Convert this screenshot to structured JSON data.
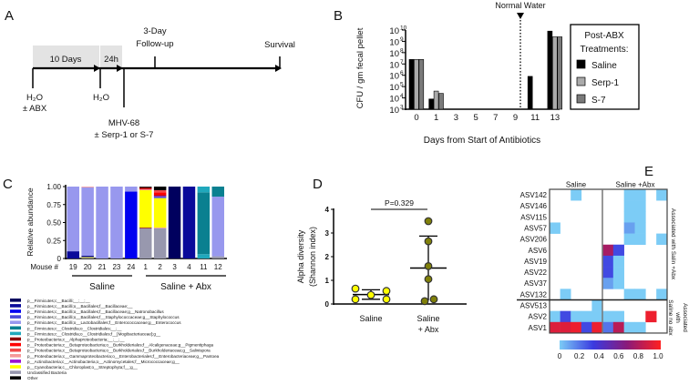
{
  "panels": {
    "a": "A",
    "b": "B",
    "c": "C",
    "d": "D",
    "e": "E"
  },
  "timeline": {
    "box1": "10 Days",
    "box2": "24h",
    "start_label1": "H₂O",
    "start_label2": "± ABX",
    "mid_label": "H₂O",
    "infect_label1": "MHV-68",
    "infect_label2": "± Serp-1 or S-7",
    "followup1": "3-Day",
    "followup2": "Follow-up",
    "end_label": "Survival"
  },
  "chart_data": [
    {
      "id": "B",
      "type": "bar",
      "title": "",
      "xlabel": "Days from Start of Antibiotics",
      "ylabel": "CFU / gm fecal pellet",
      "yscale": "log",
      "ylim": [
        1000,
        10000000000
      ],
      "y_tick_base": "10",
      "y_tick_exponents": [
        "3",
        "4",
        "5",
        "6",
        "7",
        "8",
        "9",
        "10"
      ],
      "categories": [
        "0",
        "1",
        "3",
        "5",
        "7",
        "9",
        "11",
        "13"
      ],
      "annotation": "Normal Water",
      "annotation_between": [
        "9",
        "11"
      ],
      "legend_title": [
        "Post-ABX",
        "Treatments:"
      ],
      "legend_position": "right",
      "series": [
        {
          "name": "Saline",
          "color": "#000000",
          "values": [
            25000000,
            8000,
            null,
            null,
            null,
            null,
            800000,
            8000000000
          ]
        },
        {
          "name": "Serp-1",
          "color": "#aaaaaa",
          "values": [
            25000000,
            40000,
            null,
            null,
            null,
            null,
            null,
            2500000000
          ]
        },
        {
          "name": "S-7",
          "color": "#7a7a7a",
          "values": [
            25000000,
            25000,
            null,
            null,
            null,
            null,
            null,
            2500000000
          ]
        }
      ]
    },
    {
      "id": "C",
      "type": "bar",
      "stacked": true,
      "ylabel": "Relative abundance",
      "ylim": [
        0,
        1
      ],
      "y_ticks": [
        "0",
        "0.25",
        "0.50",
        "0.75",
        "1.00"
      ],
      "x_prefix": "Mouse #",
      "categories": [
        "19",
        "20",
        "21",
        "23",
        "24",
        "1",
        "2",
        "3",
        "4",
        "11",
        "12"
      ],
      "groups": [
        {
          "name": "Saline",
          "members": 5
        },
        {
          "name": "Saline + Abx",
          "members": 6
        }
      ],
      "taxa": [
        {
          "name": "p__Firmicutes;c__Bacilli;__;__;__",
          "color": "#00005e"
        },
        {
          "name": "p__Firmicutes;c__Bacilli;o__Bacillales;f__Bacillaceae;__",
          "color": "#0a0a9a"
        },
        {
          "name": "p__Firmicutes;c__Bacilli;o__Bacillales;f__Bacillaceae;g__Natronobacillus",
          "color": "#0000f0"
        },
        {
          "name": "p__Firmicutes;c__Bacilli;o__Bacillales;f__Staphylococcaceae;g__Staphylococcus",
          "color": "#4a4ad8"
        },
        {
          "name": "p__Firmicutes;c__Bacilli;o__Lactobacillales;f__Enterococcaceae;g__Enterococcus",
          "color": "#9898ee"
        },
        {
          "name": "p__Firmicutes;c__Clostridia;o__Clostridiales;__;__",
          "color": "#0a8090"
        },
        {
          "name": "p__Firmicutes;c__Clostridia;o__Clostridiales;f__[Mogibacteriaceae];g__",
          "color": "#20a8bc"
        },
        {
          "name": "p__Proteobacteria;c__Alphaproteobacteria;__;__;__",
          "color": "#8b0a0a"
        },
        {
          "name": "p__Proteobacteria;c__Betaproteobacteria;o__Burkholderiales;f__Alcaligenaceae;g__Pigmentiphaga",
          "color": "#ff0000"
        },
        {
          "name": "p__Proteobacteria;c__Betaproteobacteria;o__Burkholderiales;f__Burkholderiaceae;g__Salinispora",
          "color": "#f04848"
        },
        {
          "name": "p__Proteobacteria;c__Gammaproteobacteria;o__Enterobacteriales;f__Enterobacteriaceae;g__Pantoea",
          "color": "#f59898"
        },
        {
          "name": "p__Actinobacteria;c__Actinobacteria;o__Actinomycetales;f__Micrococcaceae;g__",
          "color": "#9a10d0"
        },
        {
          "name": "p__Cyanobacteria;c__Chloroplast;o__Streptophyta;f__;g__",
          "color": "#ffff00"
        },
        {
          "name": "Unclassified Bacteria",
          "color": "#9898ae"
        },
        {
          "name": "Other",
          "color": "#000000"
        }
      ],
      "stacks": [
        [
          [
            1,
            0.1
          ],
          [
            4,
            0.9
          ]
        ],
        [
          [
            13,
            0.01
          ],
          [
            12,
            0.01
          ],
          [
            1,
            0.02
          ],
          [
            4,
            0.95
          ],
          [
            10,
            0.01
          ]
        ],
        [
          [
            4,
            1.0
          ]
        ],
        [
          [
            4,
            1.0
          ]
        ],
        [
          [
            2,
            0.93
          ],
          [
            4,
            0.07
          ]
        ],
        [
          [
            13,
            0.42
          ],
          [
            7,
            0.01
          ],
          [
            12,
            0.52
          ],
          [
            10,
            0.01
          ],
          [
            8,
            0.01
          ],
          [
            7,
            0.02
          ],
          [
            14,
            0.01
          ]
        ],
        [
          [
            13,
            0.42
          ],
          [
            10,
            0.01
          ],
          [
            12,
            0.41
          ],
          [
            3,
            0.02
          ],
          [
            11,
            0.01
          ],
          [
            7,
            0.01
          ],
          [
            8,
            0.04
          ],
          [
            9,
            0.03
          ],
          [
            14,
            0.05
          ]
        ],
        [
          [
            0,
            1.0
          ]
        ],
        [
          [
            1,
            1.0
          ]
        ],
        [
          [
            6,
            0.06
          ],
          [
            5,
            0.86
          ],
          [
            6,
            0.08
          ]
        ],
        [
          [
            13,
            0.03
          ],
          [
            4,
            0.83
          ],
          [
            5,
            0.14
          ]
        ]
      ]
    },
    {
      "id": "D",
      "type": "scatter",
      "ylabel": [
        "Alpha diversity",
        "(Shannon index)"
      ],
      "ylim": [
        0,
        4
      ],
      "y_ticks": [
        "0",
        "1",
        "2",
        "3",
        "4"
      ],
      "categories": [
        [
          "Saline"
        ],
        [
          "Saline",
          "+ Abx"
        ]
      ],
      "annotation": "P=0.329",
      "series": [
        {
          "name": "Saline",
          "color": "#ffff00",
          "values": [
            0.65,
            0.2,
            0.38,
            0.55,
            0.2
          ],
          "mean": 0.4,
          "sd_low": 0.2,
          "sd_high": 0.6
        },
        {
          "name": "Saline + Abx",
          "color": "#80800a",
          "values": [
            3.5,
            2.65,
            1.6,
            1.05,
            0.12,
            0.2
          ],
          "mean": 1.52,
          "sd_low": 0.15,
          "sd_high": 2.87
        }
      ]
    },
    {
      "id": "E",
      "type": "heatmap",
      "column_groups": [
        {
          "name": "Saline",
          "members": 5
        },
        {
          "name": "Saline +Abx",
          "members": 6
        }
      ],
      "rows": [
        "ASV142",
        "ASV146",
        "ASV115",
        "ASV57",
        "ASV206",
        "ASV6",
        "ASV19",
        "ASV22",
        "ASV37",
        "ASV132",
        "ASV513",
        "ASV2",
        "ASV1"
      ],
      "row_groups": [
        {
          "name": [
            "Associated with Salin +Abx"
          ],
          "members": 10
        },
        {
          "name": [
            "Associated",
            "with",
            "Saline no abx"
          ],
          "members": 3
        }
      ],
      "values": [
        [
          null,
          null,
          0,
          null,
          null,
          null,
          null,
          0,
          0,
          null,
          0
        ],
        [
          null,
          null,
          null,
          null,
          null,
          null,
          null,
          0,
          0,
          null,
          null
        ],
        [
          null,
          null,
          null,
          null,
          null,
          null,
          null,
          0,
          0,
          null,
          null
        ],
        [
          0,
          null,
          null,
          null,
          null,
          null,
          null,
          0.1,
          0,
          null,
          null
        ],
        [
          null,
          null,
          null,
          null,
          null,
          null,
          null,
          0,
          0,
          null,
          0
        ],
        [
          null,
          null,
          null,
          null,
          null,
          0.75,
          0.3,
          null,
          null,
          null,
          null
        ],
        [
          null,
          null,
          null,
          null,
          null,
          0.3,
          0,
          null,
          null,
          null,
          null
        ],
        [
          null,
          null,
          null,
          null,
          null,
          0.3,
          0,
          null,
          null,
          null,
          null
        ],
        [
          null,
          null,
          null,
          null,
          null,
          0.1,
          0,
          null,
          null,
          null,
          null
        ],
        [
          null,
          0,
          null,
          null,
          null,
          null,
          null,
          0,
          0,
          null,
          0
        ],
        [
          null,
          null,
          null,
          null,
          0,
          null,
          null,
          null,
          null,
          null,
          null
        ],
        [
          0,
          0.3,
          0,
          0,
          0,
          0,
          0,
          null,
          null,
          0.95,
          null
        ],
        [
          0.9,
          0.9,
          0.95,
          0.3,
          0.95,
          0.2,
          0.8,
          0,
          0,
          null,
          null
        ]
      ],
      "colorbar_ticks": [
        "0",
        "0.2",
        "0.4",
        "0.6",
        "0.8",
        "1.0"
      ],
      "colorscale": [
        "#7cccf6",
        "#3a3ae0",
        "#8a1a7a",
        "#ff2020"
      ]
    }
  ]
}
